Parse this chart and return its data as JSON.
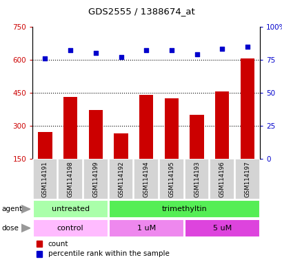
{
  "title": "GDS2555 / 1388674_at",
  "samples": [
    "GSM114191",
    "GSM114198",
    "GSM114199",
    "GSM114192",
    "GSM114194",
    "GSM114195",
    "GSM114193",
    "GSM114196",
    "GSM114197"
  ],
  "counts": [
    270,
    430,
    370,
    265,
    440,
    425,
    350,
    455,
    605
  ],
  "percentiles": [
    76,
    82,
    80,
    77,
    82,
    82,
    79,
    83,
    85
  ],
  "bar_color": "#cc0000",
  "dot_color": "#0000cc",
  "ylim_left": [
    150,
    750
  ],
  "ylim_right": [
    0,
    100
  ],
  "yticks_left": [
    150,
    300,
    450,
    600,
    750
  ],
  "ytick_labels_left": [
    "150",
    "300",
    "450",
    "600",
    "750"
  ],
  "yticks_right": [
    0,
    25,
    50,
    75,
    100
  ],
  "ytick_labels_right": [
    "0",
    "25",
    "50",
    "75",
    "100%"
  ],
  "hlines": [
    300,
    450,
    600
  ],
  "agent_groups": [
    {
      "label": "untreated",
      "start": 0,
      "end": 3,
      "color": "#aaffaa"
    },
    {
      "label": "trimethyltin",
      "start": 3,
      "end": 9,
      "color": "#55ee55"
    }
  ],
  "dose_groups": [
    {
      "label": "control",
      "start": 0,
      "end": 3,
      "color": "#ffbbff"
    },
    {
      "label": "1 uM",
      "start": 3,
      "end": 6,
      "color": "#ee88ee"
    },
    {
      "label": "5 uM",
      "start": 6,
      "end": 9,
      "color": "#dd44dd"
    }
  ],
  "legend_count_color": "#cc0000",
  "legend_dot_color": "#0000cc",
  "background_color": "#ffffff",
  "plot_bg_color": "#ffffff",
  "sample_box_color": "#d4d4d4"
}
